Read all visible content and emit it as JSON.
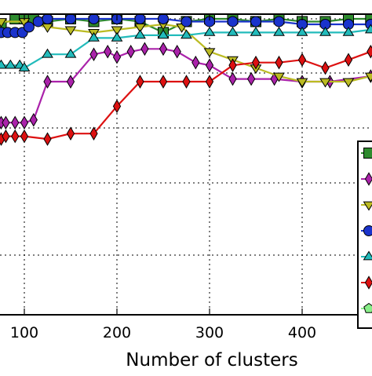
{
  "chart_data": {
    "type": "line",
    "title": "",
    "xlabel": "Number of clusters",
    "ylabel": "",
    "xlim": [
      70,
      474
    ],
    "ylim": [
      0.1,
      1.02
    ],
    "grid": true,
    "legend_placement": "right (partially cropped, labels not visible)",
    "x_tick_labels": [
      "100",
      "200",
      "300",
      "400"
    ],
    "x_ticks": [
      100,
      200,
      300,
      400
    ],
    "y_gridlines": [
      0.2,
      0.4,
      0.6,
      0.8,
      1.0
    ],
    "series": [
      {
        "color": "#2e8b2e",
        "marker": "square",
        "x": [
          75,
          90,
          100,
          110,
          125,
          150,
          175,
          200,
          225,
          250,
          275,
          300,
          325,
          350,
          375,
          400,
          425,
          450,
          474
        ],
        "y": [
          0.98,
          1.0,
          1.0,
          1.0,
          0.99,
          1.0,
          0.99,
          1.0,
          0.99,
          0.95,
          0.99,
          1.0,
          1.0,
          0.99,
          1.0,
          0.99,
          0.99,
          1.0,
          1.0
        ]
      },
      {
        "color": "#aa22aa",
        "marker": "thin_diamond",
        "x": [
          75,
          80,
          90,
          100,
          110,
          125,
          150,
          175,
          190,
          200,
          215,
          230,
          250,
          265,
          285,
          300,
          325,
          345,
          370,
          400,
          430,
          474
        ],
        "y": [
          0.62,
          0.62,
          0.62,
          0.62,
          0.63,
          0.77,
          0.77,
          0.87,
          0.88,
          0.86,
          0.88,
          0.89,
          0.89,
          0.88,
          0.84,
          0.83,
          0.78,
          0.78,
          0.78,
          0.77,
          0.77,
          0.79
        ]
      },
      {
        "color": "#bbbb22",
        "marker": "triangle_down",
        "x": [
          75,
          100,
          125,
          150,
          175,
          200,
          225,
          250,
          270,
          300,
          325,
          350,
          375,
          400,
          425,
          450,
          474
        ],
        "y": [
          0.99,
          0.99,
          0.97,
          0.96,
          0.95,
          0.96,
          0.97,
          0.98,
          0.97,
          0.88,
          0.85,
          0.82,
          0.79,
          0.77,
          0.77,
          0.77,
          0.79
        ]
      },
      {
        "color": "#1a33cc",
        "marker": "circle",
        "x": [
          75,
          82,
          90,
          98,
          105,
          115,
          125,
          150,
          175,
          200,
          225,
          250,
          275,
          300,
          325,
          350,
          375,
          400,
          425,
          450,
          474
        ],
        "y": [
          0.95,
          0.95,
          0.95,
          0.95,
          0.97,
          0.99,
          1.0,
          1.0,
          1.0,
          1.0,
          1.0,
          1.0,
          0.99,
          0.99,
          0.99,
          0.99,
          0.99,
          0.98,
          0.98,
          0.98,
          0.98
        ]
      },
      {
        "color": "#22bbbb",
        "marker": "triangle_up",
        "x": [
          75,
          85,
          95,
          100,
          125,
          150,
          175,
          200,
          225,
          250,
          275,
          300,
          325,
          350,
          375,
          400,
          425,
          450,
          474
        ],
        "y": [
          0.83,
          0.83,
          0.83,
          0.82,
          0.87,
          0.87,
          0.93,
          0.93,
          0.94,
          0.94,
          0.94,
          0.95,
          0.95,
          0.95,
          0.95,
          0.95,
          0.95,
          0.95,
          0.96
        ]
      },
      {
        "color": "#dd1111",
        "marker": "thin_diamond",
        "x": [
          75,
          80,
          90,
          100,
          125,
          150,
          175,
          200,
          225,
          250,
          275,
          300,
          325,
          350,
          375,
          400,
          425,
          450,
          474
        ],
        "y": [
          0.56,
          0.57,
          0.57,
          0.57,
          0.56,
          0.58,
          0.58,
          0.68,
          0.77,
          0.77,
          0.77,
          0.77,
          0.83,
          0.84,
          0.84,
          0.85,
          0.82,
          0.85,
          0.88
        ]
      }
    ],
    "legend_entries": [
      {
        "color": "#2e8b2e",
        "marker": "square"
      },
      {
        "color": "#aa22aa",
        "marker": "thin_diamond"
      },
      {
        "color": "#bbbb22",
        "marker": "triangle_down"
      },
      {
        "color": "#1a33cc",
        "marker": "circle"
      },
      {
        "color": "#22bbbb",
        "marker": "triangle_up"
      },
      {
        "color": "#dd1111",
        "marker": "thin_diamond"
      },
      {
        "color": "#88ee88",
        "marker": "pentagon"
      }
    ]
  }
}
